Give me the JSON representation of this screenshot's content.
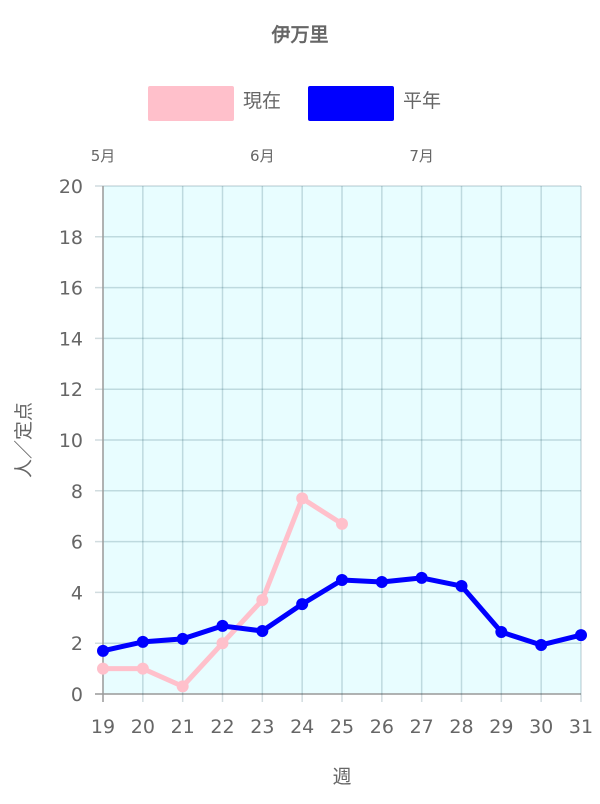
{
  "chart_data": {
    "type": "line",
    "title": "伊万里",
    "xlabel": "週",
    "ylabel": "人／定点",
    "x": [
      19,
      20,
      21,
      22,
      23,
      24,
      25,
      26,
      27,
      28,
      29,
      30,
      31
    ],
    "ylim": [
      0,
      20
    ],
    "yticks": [
      0,
      2,
      4,
      6,
      8,
      10,
      12,
      14,
      16,
      18,
      20
    ],
    "grid": true,
    "legend_position": "top",
    "plot_background": "#e8fdff",
    "month_labels": [
      {
        "label": "5月",
        "week": 19
      },
      {
        "label": "6月",
        "week": 23
      },
      {
        "label": "7月",
        "week": 27
      }
    ],
    "series": [
      {
        "name": "現在",
        "color": "#ffc0cb",
        "values": [
          1.0,
          1.0,
          0.3,
          2.0,
          3.7,
          7.7,
          6.7,
          null,
          null,
          null,
          null,
          null,
          null
        ]
      },
      {
        "name": "平年",
        "color": "#0000ff",
        "values": [
          1.7,
          2.05,
          2.17,
          2.68,
          2.48,
          3.54,
          4.49,
          4.41,
          4.57,
          4.25,
          2.44,
          1.93,
          2.32
        ]
      }
    ]
  }
}
